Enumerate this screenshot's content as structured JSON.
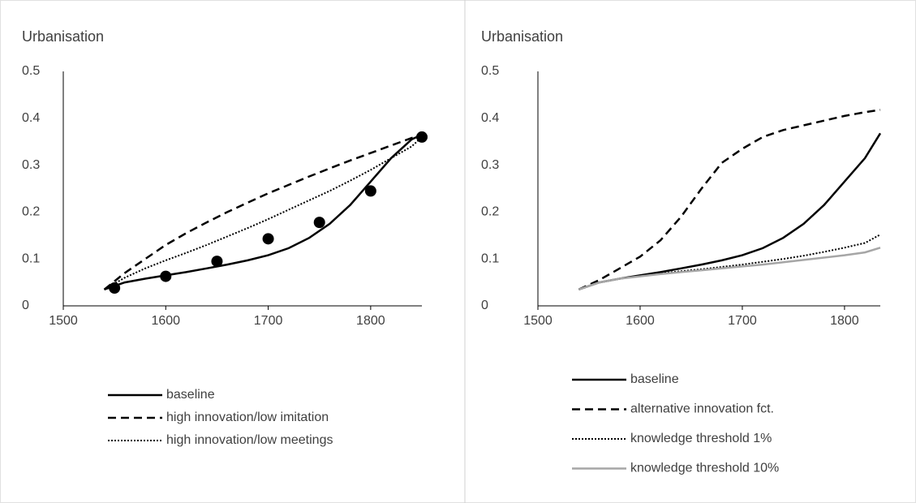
{
  "chart_data": [
    {
      "type": "line",
      "title": "Urbanisation",
      "x": [
        1540,
        1560,
        1580,
        1600,
        1620,
        1640,
        1660,
        1680,
        1700,
        1720,
        1740,
        1760,
        1780,
        1800,
        1820,
        1840,
        1850
      ],
      "xlim": [
        1500,
        1850
      ],
      "xticks": [
        1500,
        1600,
        1700,
        1800
      ],
      "ylim": [
        0,
        0.5
      ],
      "yticks": [
        0,
        0.1,
        0.2,
        0.3,
        0.4,
        0.5
      ],
      "series": [
        {
          "name": "baseline",
          "color": "#000000",
          "dash": "solid",
          "values": [
            0.035,
            0.05,
            0.058,
            0.065,
            0.072,
            0.08,
            0.088,
            0.097,
            0.108,
            0.123,
            0.145,
            0.175,
            0.215,
            0.265,
            0.315,
            0.355,
            0.365
          ]
        },
        {
          "name": "high innovation/low imitation",
          "color": "#000000",
          "dash": "dashed",
          "values": [
            0.035,
            0.07,
            0.1,
            0.13,
            0.155,
            0.178,
            0.2,
            0.22,
            0.24,
            0.258,
            0.276,
            0.293,
            0.31,
            0.326,
            0.342,
            0.358,
            0.365
          ]
        },
        {
          "name": "high innovation/low meetings",
          "color": "#000000",
          "dash": "dotted",
          "values": [
            0.035,
            0.06,
            0.08,
            0.097,
            0.113,
            0.13,
            0.148,
            0.166,
            0.185,
            0.205,
            0.225,
            0.245,
            0.267,
            0.29,
            0.315,
            0.34,
            0.36
          ]
        },
        {
          "type": "scatter",
          "color": "#000000",
          "x": [
            1550,
            1600,
            1650,
            1700,
            1750,
            1800,
            1850
          ],
          "values": [
            0.038,
            0.063,
            0.095,
            0.143,
            0.178,
            0.245,
            0.36
          ]
        }
      ]
    },
    {
      "type": "line",
      "title": "Urbanisation",
      "x": [
        1540,
        1560,
        1580,
        1600,
        1620,
        1640,
        1660,
        1680,
        1700,
        1720,
        1740,
        1760,
        1780,
        1800,
        1820,
        1835
      ],
      "xlim": [
        1500,
        1835
      ],
      "xticks": [
        1500,
        1600,
        1700,
        1800
      ],
      "ylim": [
        0,
        0.5
      ],
      "yticks": [
        0,
        0.1,
        0.2,
        0.3,
        0.4,
        0.5
      ],
      "series": [
        {
          "name": "baseline",
          "color": "#000000",
          "dash": "solid",
          "values": [
            0.035,
            0.05,
            0.058,
            0.065,
            0.072,
            0.08,
            0.088,
            0.097,
            0.108,
            0.123,
            0.145,
            0.175,
            0.215,
            0.265,
            0.315,
            0.368
          ]
        },
        {
          "name": "alternative innovation fct.",
          "color": "#000000",
          "dash": "dashed",
          "values": [
            0.035,
            0.055,
            0.08,
            0.105,
            0.14,
            0.19,
            0.25,
            0.305,
            0.335,
            0.36,
            0.375,
            0.385,
            0.395,
            0.405,
            0.413,
            0.418
          ]
        },
        {
          "name": "knowledge threshold 1%",
          "color": "#000000",
          "dash": "dotted",
          "values": [
            0.035,
            0.05,
            0.058,
            0.064,
            0.069,
            0.074,
            0.078,
            0.083,
            0.088,
            0.094,
            0.1,
            0.107,
            0.115,
            0.124,
            0.134,
            0.152
          ]
        },
        {
          "name": "knowledge threshold 10%",
          "color": "#a6a6a6",
          "dash": "solid",
          "values": [
            0.035,
            0.05,
            0.058,
            0.063,
            0.068,
            0.072,
            0.076,
            0.08,
            0.084,
            0.088,
            0.093,
            0.098,
            0.103,
            0.108,
            0.114,
            0.124
          ]
        }
      ]
    }
  ]
}
